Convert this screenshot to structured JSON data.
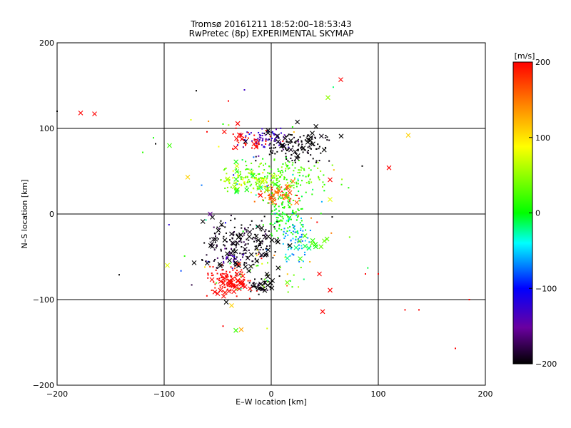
{
  "title": "Tromsø 20161211 18:52:00–18:53:43",
  "subtitle": "RwPretec (8p) EXPERIMENTAL SKYMAP",
  "chart_data": {
    "type": "scatter",
    "title": "Tromsø 20161211 18:52:00–18:53:43",
    "subtitle": "RwPretec (8p) EXPERIMENTAL SKYMAP",
    "xlabel": "E–W location [km]",
    "ylabel": "N–S location [km]",
    "xlim": [
      -200,
      200
    ],
    "ylim": [
      -200,
      200
    ],
    "xticks": [
      -200,
      -100,
      0,
      100,
      200
    ],
    "yticks": [
      -200,
      -100,
      0,
      100,
      200
    ],
    "grid": true,
    "colorbar": {
      "label": "[m/s]",
      "range": [
        -200,
        200
      ],
      "ticks": [
        -200,
        -100,
        0,
        100,
        200
      ],
      "colormap": "rainbow: black - purple - blue - cyan - green - yellow - orange - red"
    },
    "marker_types": [
      "x",
      "dot"
    ],
    "clusters": [
      {
        "marker": "dot",
        "cx": 25,
        "cy": 78,
        "sx": 15,
        "sy": 8,
        "n": 120,
        "v": -200,
        "vs": 5
      },
      {
        "marker": "x",
        "cx": 20,
        "cy": 82,
        "sx": 16,
        "sy": 12,
        "n": 28,
        "v": -200,
        "vs": 5
      },
      {
        "marker": "dot",
        "cx": -5,
        "cy": 88,
        "sx": 12,
        "sy": 5,
        "n": 70,
        "v": -130,
        "vs": 15
      },
      {
        "marker": "dot",
        "cx": -20,
        "cy": 86,
        "sx": 10,
        "sy": 6,
        "n": 25,
        "v": 200,
        "vs": 8
      },
      {
        "marker": "x",
        "cx": -25,
        "cy": 85,
        "sx": 12,
        "sy": 8,
        "n": 10,
        "v": 200,
        "vs": 6
      },
      {
        "marker": "dot",
        "cx": 8,
        "cy": 45,
        "sx": 25,
        "sy": 9,
        "n": 160,
        "v": 25,
        "vs": 15
      },
      {
        "marker": "dot",
        "cx": -20,
        "cy": 40,
        "sx": 14,
        "sy": 7,
        "n": 80,
        "v": 60,
        "vs": 20
      },
      {
        "marker": "x",
        "cx": -20,
        "cy": 38,
        "sx": 16,
        "sy": 10,
        "n": 25,
        "v": 40,
        "vs": 30
      },
      {
        "marker": "dot",
        "cx": 5,
        "cy": 22,
        "sx": 9,
        "sy": 5,
        "n": 60,
        "v": 170,
        "vs": 25
      },
      {
        "marker": "x",
        "cx": 5,
        "cy": 22,
        "sx": 10,
        "sy": 6,
        "n": 12,
        "v": 175,
        "vs": 20
      },
      {
        "marker": "dot",
        "cx": 12,
        "cy": 0,
        "sx": 9,
        "sy": 14,
        "n": 130,
        "v": 5,
        "vs": 12
      },
      {
        "marker": "dot",
        "cx": 22,
        "cy": -30,
        "sx": 6,
        "sy": 14,
        "n": 60,
        "v": -60,
        "vs": 12
      },
      {
        "marker": "x",
        "cx": 28,
        "cy": -38,
        "sx": 14,
        "sy": 10,
        "n": 15,
        "v": 10,
        "vs": 25
      },
      {
        "marker": "dot",
        "cx": -25,
        "cy": -35,
        "sx": 18,
        "sy": 15,
        "n": 160,
        "v": -195,
        "vs": 10
      },
      {
        "marker": "x",
        "cx": -25,
        "cy": -38,
        "sx": 18,
        "sy": 16,
        "n": 55,
        "v": -200,
        "vs": 5
      },
      {
        "marker": "dot",
        "cx": -38,
        "cy": -50,
        "sx": 5,
        "sy": 5,
        "n": 20,
        "v": -140,
        "vs": 10
      },
      {
        "marker": "dot",
        "cx": -38,
        "cy": -78,
        "sx": 10,
        "sy": 8,
        "n": 90,
        "v": 200,
        "vs": 8
      },
      {
        "marker": "x",
        "cx": -38,
        "cy": -80,
        "sx": 10,
        "sy": 8,
        "n": 30,
        "v": 200,
        "vs": 6
      },
      {
        "marker": "dot",
        "cx": -12,
        "cy": -85,
        "sx": 6,
        "sy": 4,
        "n": 40,
        "v": -195,
        "vs": 8
      },
      {
        "marker": "x",
        "cx": -8,
        "cy": -85,
        "sx": 6,
        "sy": 5,
        "n": 10,
        "v": -200,
        "vs": 5
      },
      {
        "marker": "dot",
        "cx": 5,
        "cy": -65,
        "sx": 22,
        "sy": 12,
        "n": 30,
        "v": 50,
        "vs": 40
      },
      {
        "marker": "dot",
        "cx": 0,
        "cy": 10,
        "sx": 45,
        "sy": 60,
        "n": 60,
        "v": 20,
        "vs": 110
      }
    ],
    "isolated": [
      {
        "x": -178,
        "y": 118,
        "marker": "x",
        "v": 200
      },
      {
        "x": -165,
        "y": 117,
        "marker": "x",
        "v": 200
      },
      {
        "x": -200,
        "y": 120,
        "marker": "dot",
        "v": -200
      },
      {
        "x": 65,
        "y": 157,
        "marker": "x",
        "v": 200
      },
      {
        "x": 53,
        "y": 136,
        "marker": "x",
        "v": 50
      },
      {
        "x": 128,
        "y": 92,
        "marker": "x",
        "v": 110
      },
      {
        "x": 110,
        "y": 54,
        "marker": "x",
        "v": 200
      },
      {
        "x": -95,
        "y": 80,
        "marker": "x",
        "v": 20
      },
      {
        "x": -110,
        "y": 89,
        "marker": "dot",
        "v": 5
      },
      {
        "x": -108,
        "y": 82,
        "marker": "dot",
        "v": -200
      },
      {
        "x": -120,
        "y": 72,
        "marker": "dot",
        "v": 15
      },
      {
        "x": -78,
        "y": 43,
        "marker": "x",
        "v": 110
      },
      {
        "x": -75,
        "y": 110,
        "marker": "dot",
        "v": 80
      },
      {
        "x": -60,
        "y": 96,
        "marker": "dot",
        "v": 200
      },
      {
        "x": -45,
        "y": 105,
        "marker": "dot",
        "v": 10
      },
      {
        "x": -40,
        "y": 132,
        "marker": "dot",
        "v": 200
      },
      {
        "x": -25,
        "y": 145,
        "marker": "dot",
        "v": -130
      },
      {
        "x": -70,
        "y": 144,
        "marker": "dot",
        "v": -200
      },
      {
        "x": 55,
        "y": 40,
        "marker": "x",
        "v": 200
      },
      {
        "x": 55,
        "y": 17,
        "marker": "x",
        "v": 80
      },
      {
        "x": 85,
        "y": 56,
        "marker": "dot",
        "v": -200
      },
      {
        "x": -57,
        "y": 0,
        "marker": "x",
        "v": -150
      },
      {
        "x": -97,
        "y": -60,
        "marker": "x",
        "v": 80
      },
      {
        "x": -72,
        "y": -57,
        "marker": "x",
        "v": -200
      },
      {
        "x": -142,
        "y": -71,
        "marker": "dot",
        "v": -200
      },
      {
        "x": -62,
        "y": -62,
        "marker": "dot",
        "v": 100
      },
      {
        "x": 45,
        "y": -70,
        "marker": "x",
        "v": 200
      },
      {
        "x": 55,
        "y": -89,
        "marker": "x",
        "v": 200
      },
      {
        "x": 48,
        "y": -114,
        "marker": "x",
        "v": 200
      },
      {
        "x": 88,
        "y": -70,
        "marker": "dot",
        "v": 200
      },
      {
        "x": 100,
        "y": -70,
        "marker": "dot",
        "v": 200
      },
      {
        "x": 125,
        "y": -112,
        "marker": "dot",
        "v": 200
      },
      {
        "x": 138,
        "y": -112,
        "marker": "dot",
        "v": 200
      },
      {
        "x": 172,
        "y": -157,
        "marker": "dot",
        "v": 200
      },
      {
        "x": 185,
        "y": -100,
        "marker": "dot",
        "v": 200
      },
      {
        "x": -45,
        "y": -131,
        "marker": "dot",
        "v": 200
      },
      {
        "x": -33,
        "y": -136,
        "marker": "x",
        "v": 20
      },
      {
        "x": -28,
        "y": -135,
        "marker": "x",
        "v": 130
      },
      {
        "x": -37,
        "y": -107,
        "marker": "x",
        "v": 110
      },
      {
        "x": -42,
        "y": -103,
        "marker": "x",
        "v": -200
      },
      {
        "x": -50,
        "y": -93,
        "marker": "x",
        "v": 200
      },
      {
        "x": 15,
        "y": -80,
        "marker": "x",
        "v": 40
      }
    ]
  }
}
